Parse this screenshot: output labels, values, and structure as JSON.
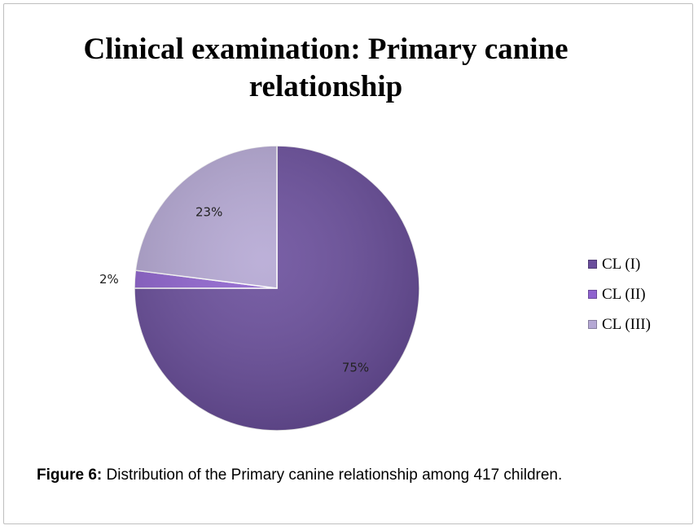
{
  "chart_data": {
    "type": "pie",
    "title": "Clinical examination: Primary canine relationship",
    "categories": [
      "CL (I)",
      "CL (II)",
      "CL (III)"
    ],
    "values": [
      75,
      2,
      23
    ],
    "data_labels": [
      "75%",
      "2%",
      "23%"
    ],
    "colors": [
      "#6a4e9c",
      "#8f63cf",
      "#b5a8d4"
    ],
    "legend_position": "right"
  },
  "caption": {
    "label": "Figure 6:",
    "text": " Distribution of the Primary canine relationship among 417 children."
  }
}
